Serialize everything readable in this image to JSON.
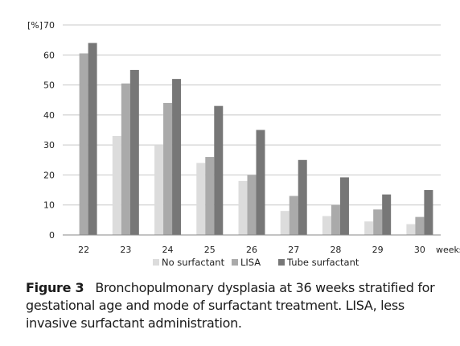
{
  "chart_data": {
    "type": "bar",
    "ylabel": "[%]",
    "xlabel": "weeks",
    "categories": [
      "22",
      "23",
      "24",
      "25",
      "26",
      "27",
      "28",
      "29",
      "30"
    ],
    "ylim": [
      0,
      70
    ],
    "yticks": [
      0,
      10,
      20,
      30,
      40,
      50,
      60,
      70
    ],
    "grid": true,
    "legend_position": "bottom",
    "series": [
      {
        "name": "No surfactant",
        "color": "#dcdcdc",
        "values": [
          0,
          33,
          30,
          24,
          18,
          8,
          6.3,
          4.5,
          3.6
        ]
      },
      {
        "name": "LISA",
        "color": "#aaaaaa",
        "values": [
          60.5,
          50.5,
          44,
          26,
          20,
          13,
          10,
          8.5,
          6
        ]
      },
      {
        "name": "Tube surfactant",
        "color": "#777777",
        "values": [
          64,
          55,
          52,
          43,
          35,
          25,
          19.2,
          13.5,
          15
        ]
      }
    ]
  },
  "caption": {
    "label": "Figure 3",
    "text": "Bronchopulmonary dysplasia at 36 weeks stratified for gestational age and mode of surfactant treatment. LISA, less invasive surfactant administration."
  }
}
